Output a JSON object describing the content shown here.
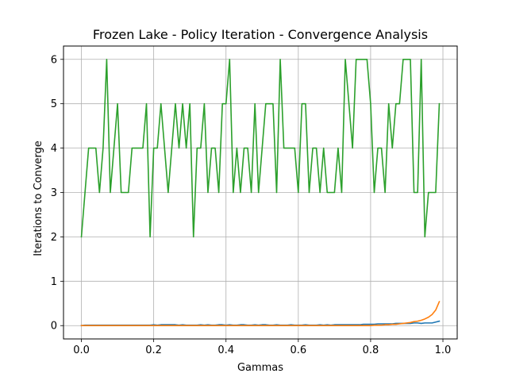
{
  "chart_data": {
    "type": "line",
    "title": "Frozen Lake - Policy Iteration - Convergence Analysis",
    "xlabel": "Gammas",
    "ylabel": "Iterations to Converge",
    "xlim": [
      -0.0495,
      1.0395
    ],
    "ylim": [
      -0.3,
      6.3
    ],
    "xticks": [
      0.0,
      0.2,
      0.4,
      0.6,
      0.8,
      1.0
    ],
    "xtick_labels": [
      "0.0",
      "0.2",
      "0.4",
      "0.6",
      "0.8",
      "1.0"
    ],
    "yticks": [
      0,
      1,
      2,
      3,
      4,
      5,
      6
    ],
    "ytick_labels": [
      "0",
      "1",
      "2",
      "3",
      "4",
      "5",
      "6"
    ],
    "grid": true,
    "legend": "none",
    "x": [
      0.0,
      0.01,
      0.02,
      0.03,
      0.04,
      0.05,
      0.06,
      0.07,
      0.08,
      0.09,
      0.1,
      0.11,
      0.12,
      0.13,
      0.14,
      0.15,
      0.16,
      0.17,
      0.18,
      0.19,
      0.2,
      0.21,
      0.22,
      0.23,
      0.24,
      0.25,
      0.26,
      0.27,
      0.28,
      0.29,
      0.3,
      0.31,
      0.32,
      0.33,
      0.34,
      0.35,
      0.36,
      0.37,
      0.38,
      0.39,
      0.4,
      0.41,
      0.42,
      0.43,
      0.44,
      0.45,
      0.46,
      0.47,
      0.48,
      0.49,
      0.5,
      0.51,
      0.52,
      0.53,
      0.54,
      0.55,
      0.56,
      0.57,
      0.58,
      0.59,
      0.6,
      0.61,
      0.62,
      0.63,
      0.64,
      0.65,
      0.66,
      0.67,
      0.68,
      0.69,
      0.7,
      0.71,
      0.72,
      0.73,
      0.74,
      0.75,
      0.76,
      0.77,
      0.78,
      0.79,
      0.8,
      0.81,
      0.82,
      0.83,
      0.84,
      0.85,
      0.86,
      0.87,
      0.88,
      0.89,
      0.9,
      0.91,
      0.92,
      0.93,
      0.94,
      0.95,
      0.96,
      0.97,
      0.98,
      0.99
    ],
    "series": [
      {
        "color": "#1f77b4",
        "values": [
          0.0,
          0.01,
          0.01,
          0.01,
          0.01,
          0.01,
          0.01,
          0.01,
          0.01,
          0.01,
          0.01,
          0.01,
          0.01,
          0.01,
          0.01,
          0.01,
          0.01,
          0.01,
          0.01,
          0.01,
          0.02,
          0.01,
          0.02,
          0.02,
          0.02,
          0.02,
          0.02,
          0.01,
          0.02,
          0.01,
          0.01,
          0.01,
          0.01,
          0.02,
          0.01,
          0.02,
          0.01,
          0.01,
          0.02,
          0.02,
          0.01,
          0.02,
          0.01,
          0.01,
          0.02,
          0.02,
          0.01,
          0.01,
          0.02,
          0.01,
          0.02,
          0.02,
          0.01,
          0.01,
          0.02,
          0.01,
          0.01,
          0.01,
          0.02,
          0.01,
          0.01,
          0.01,
          0.02,
          0.01,
          0.01,
          0.01,
          0.02,
          0.01,
          0.02,
          0.01,
          0.02,
          0.02,
          0.02,
          0.02,
          0.02,
          0.02,
          0.02,
          0.02,
          0.03,
          0.03,
          0.03,
          0.03,
          0.04,
          0.04,
          0.04,
          0.04,
          0.04,
          0.05,
          0.05,
          0.05,
          0.05,
          0.05,
          0.06,
          0.06,
          0.05,
          0.06,
          0.06,
          0.06,
          0.08,
          0.1
        ]
      },
      {
        "color": "#ff7f0e",
        "values": [
          0.0,
          0.0,
          0.0,
          0.0,
          0.0,
          0.0,
          0.0,
          0.0,
          0.0,
          0.0,
          0.0,
          0.0,
          0.0,
          0.0,
          0.0,
          0.0,
          0.0,
          0.0,
          0.0,
          0.0,
          0.0,
          0.0,
          0.0,
          0.0,
          0.0,
          0.0,
          0.0,
          0.0,
          0.0,
          0.0,
          0.0,
          0.0,
          0.0,
          0.0,
          0.0,
          0.0,
          0.0,
          0.0,
          0.0,
          0.0,
          0.0,
          0.0,
          0.0,
          0.0,
          0.0,
          0.0,
          0.0,
          0.0,
          0.0,
          0.0,
          0.0,
          0.0,
          0.0,
          0.0,
          0.0,
          0.0,
          0.0,
          0.0,
          0.0,
          0.0,
          0.0,
          0.0,
          0.0,
          0.0,
          0.0,
          0.0,
          0.0,
          0.0,
          0.0,
          0.0,
          0.0,
          0.0,
          0.0,
          0.0,
          0.0,
          0.0,
          0.0,
          0.0,
          0.0,
          0.0,
          0.0,
          0.01,
          0.01,
          0.01,
          0.02,
          0.02,
          0.03,
          0.03,
          0.04,
          0.05,
          0.06,
          0.07,
          0.09,
          0.1,
          0.12,
          0.15,
          0.19,
          0.25,
          0.35,
          0.54
        ]
      },
      {
        "color": "#2ca02c",
        "values": [
          2,
          3,
          4,
          4,
          4,
          3,
          4,
          6,
          3,
          4,
          5,
          3,
          3,
          3,
          4,
          4,
          4,
          4,
          5,
          2,
          4,
          4,
          5,
          4,
          3,
          4,
          5,
          4,
          5,
          4,
          5,
          2,
          4,
          4,
          5,
          3,
          4,
          4,
          3,
          5,
          5,
          6,
          3,
          4,
          3,
          4,
          4,
          3,
          5,
          3,
          4,
          5,
          5,
          5,
          3,
          6,
          4,
          4,
          4,
          4,
          3,
          5,
          5,
          3,
          4,
          4,
          3,
          4,
          3,
          3,
          3,
          4,
          3,
          6,
          5,
          4,
          6,
          6,
          6,
          6,
          5,
          3,
          4,
          4,
          3,
          5,
          4,
          5,
          5,
          6,
          6,
          6,
          3,
          3,
          6,
          2,
          3,
          3,
          3,
          5
        ]
      }
    ]
  }
}
